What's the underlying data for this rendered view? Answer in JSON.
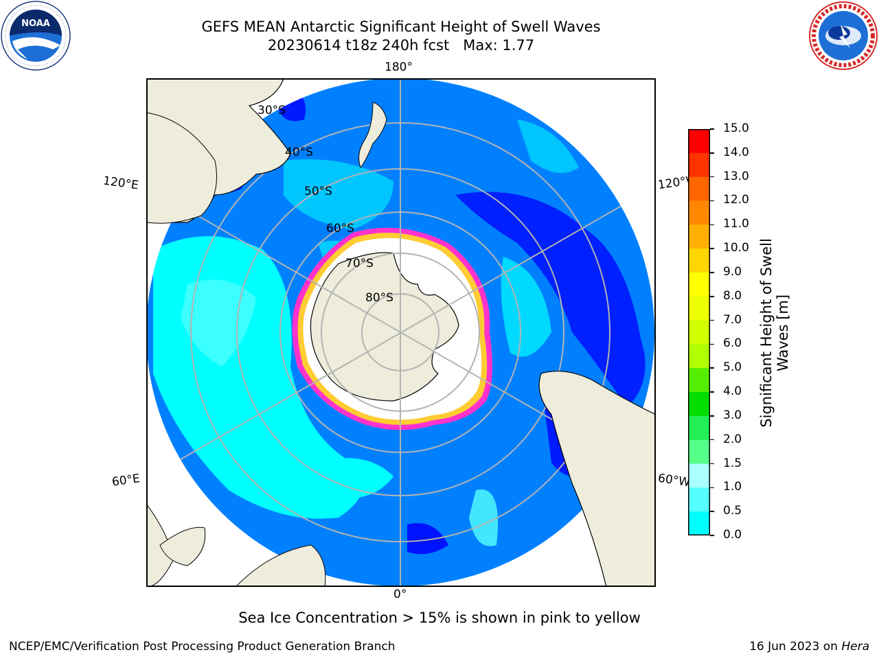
{
  "header": {
    "title_line1": "GEFS MEAN Antarctic Significant Height of Swell Waves",
    "title_line2": "20230614 t18z 240h fcst   Max: 1.77"
  },
  "logos": {
    "left": {
      "name": "NOAA",
      "text": "NOAA",
      "ring_text": "NATIONAL OCEANIC AND ATMOSPHERIC ADMINISTRATION • U.S. DEPARTMENT OF COMMERCE •"
    },
    "right": {
      "name": "National Weather Service",
      "ring_text": "NATIONAL WEATHER SERVICE"
    }
  },
  "map": {
    "projection": "south-polar-stereographic",
    "longitude_labels": {
      "top": "180°",
      "bottom": "0°",
      "upper_left": "120°E",
      "upper_right": "120°W",
      "lower_left": "60°E",
      "lower_right": "60°W"
    },
    "latitude_labels": [
      "30°S",
      "40°S",
      "50°S",
      "60°S",
      "70°S",
      "80°S"
    ],
    "colors": {
      "land": "#eeeddc",
      "ocean_low": "#0080ff",
      "ocean_min": "#0000ff",
      "cyan": "#00ffff",
      "light_cyan": "#55ffff",
      "sea_ice": "#ffffff",
      "ice_edge_pink": "#ff33cc",
      "ice_edge_yellow": "#ffcc33",
      "grid": "#b3b3b3"
    }
  },
  "colorbar": {
    "label": "Significant Height of Swell Waves [m]",
    "label_line1": "Significant Height of Swell",
    "label_line2": "Waves [m]",
    "ticks": [
      "15.0",
      "14.0",
      "13.0",
      "12.0",
      "11.0",
      "10.0",
      "9.0",
      "8.0",
      "7.0",
      "6.0",
      "5.0",
      "4.0",
      "3.0",
      "2.0",
      "1.5",
      "1.0",
      "0.5",
      "0.0"
    ],
    "colors": [
      "#ff0000",
      "#ff3300",
      "#ff6600",
      "#ff8800",
      "#ffb000",
      "#ffd700",
      "#ffff00",
      "#ecff00",
      "#d0ff00",
      "#b0ff00",
      "#55ee00",
      "#00dd00",
      "#22ee55",
      "#55ff88",
      "#aaffff",
      "#55ffff",
      "#00ffff",
      "#0080ff",
      "#0000ff"
    ]
  },
  "caption": "Sea Ice Concentration > 15% is shown in pink to yellow",
  "footer": {
    "left": "NCEP/EMC/Verification Post Processing Product Generation Branch",
    "right_prefix": "16 Jun 2023 on ",
    "right_italic": "Hera"
  }
}
